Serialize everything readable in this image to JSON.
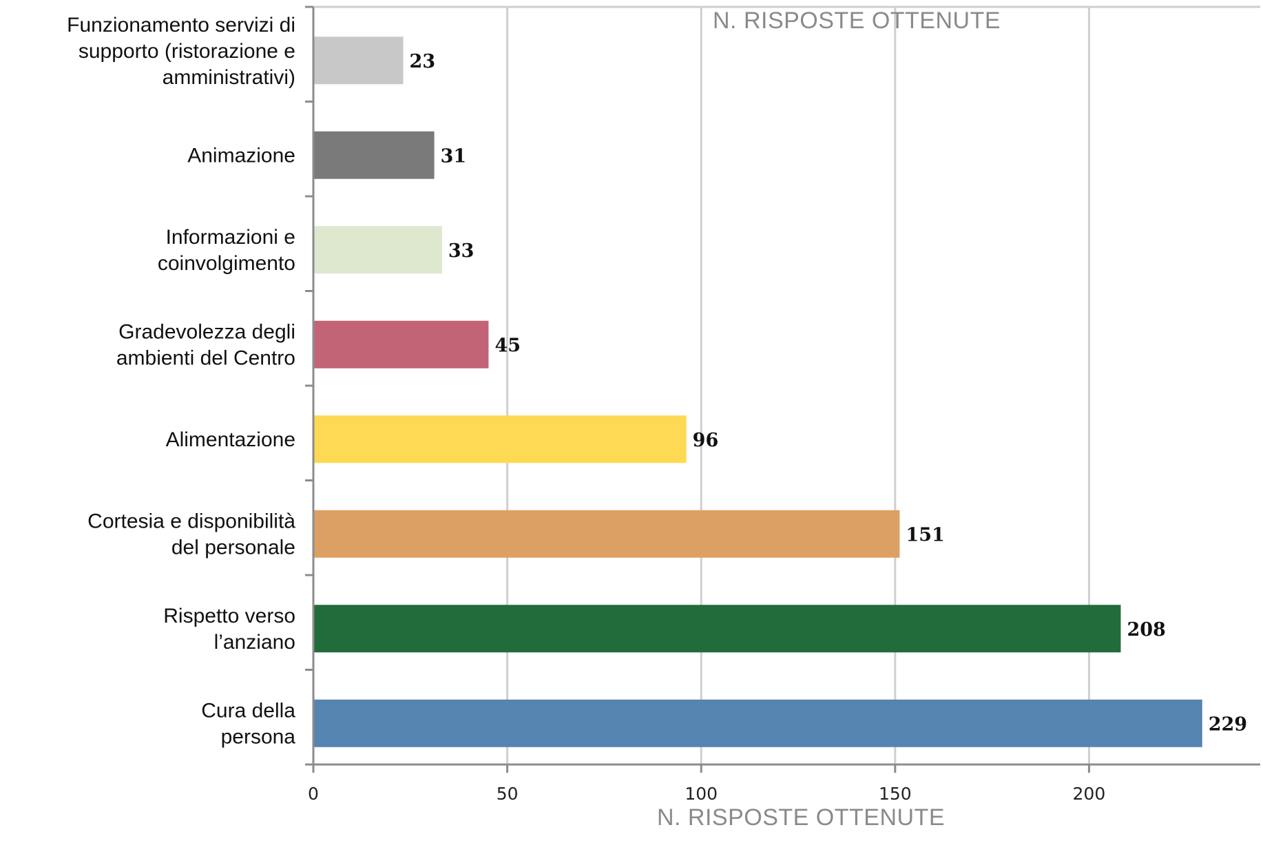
{
  "chart_data": {
    "type": "bar",
    "orientation": "horizontal",
    "title": "N. RISPOSTE OTTENUTE",
    "xlabel": "N. RISPOSTE OTTENUTE",
    "ylabel": "",
    "xlim": [
      0,
      240
    ],
    "xticks": [
      0,
      50,
      100,
      150,
      200
    ],
    "grid": true,
    "categories": [
      [
        "Funzionamento servizi di",
        "supporto (ristorazione e",
        "amministrativi)"
      ],
      [
        "Animazione"
      ],
      [
        "Informazioni e",
        "coinvolgimento"
      ],
      [
        "Gradevolezza degli",
        "ambienti del Centro"
      ],
      [
        "Alimentazione"
      ],
      [
        "Cortesia e disponibilità",
        "del personale"
      ],
      [
        "Rispetto verso",
        "l’anziano"
      ],
      [
        "Cura della",
        "persona"
      ]
    ],
    "values": [
      23,
      31,
      33,
      45,
      96,
      151,
      208,
      229
    ],
    "colors": [
      "#c8c8c8",
      "#7a7a7a",
      "#dde8cf",
      "#c36476",
      "#fdd954",
      "#dda064",
      "#226b3a",
      "#5584b0"
    ]
  }
}
